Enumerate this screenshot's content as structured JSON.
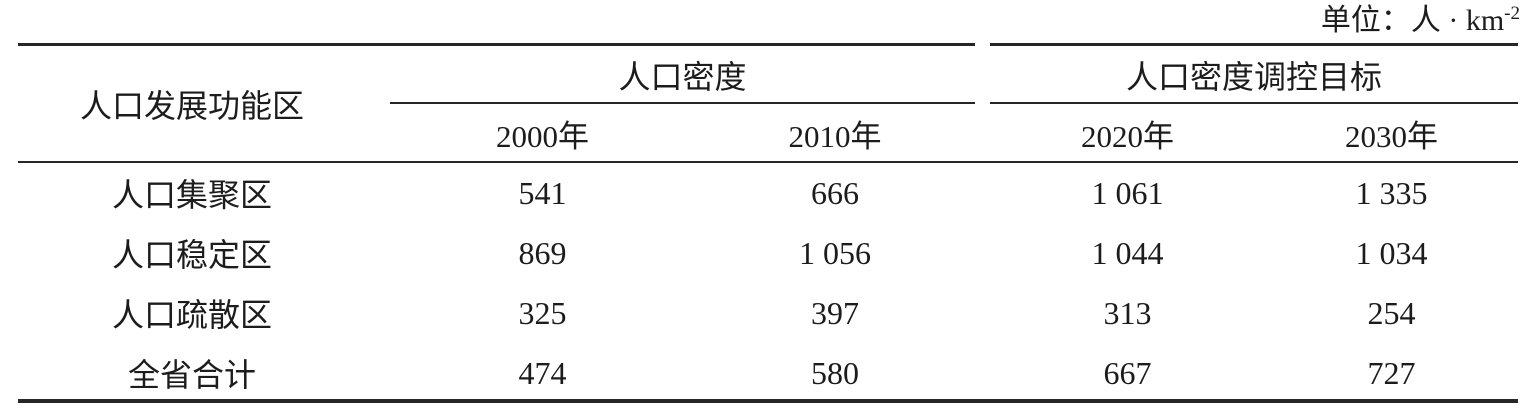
{
  "unit": {
    "prefix": "单位：人 · km",
    "exponent": "-2"
  },
  "table": {
    "corner_header": "人口发展功能区",
    "groups": [
      {
        "label": "人口密度",
        "years": [
          "2000年",
          "2010年"
        ]
      },
      {
        "label": "人口密度调控目标",
        "years": [
          "2020年",
          "2030年"
        ]
      }
    ],
    "rows": [
      {
        "label": "人口集聚区",
        "values": [
          "541",
          "666",
          "1 061",
          "1 335"
        ]
      },
      {
        "label": "人口稳定区",
        "values": [
          "869",
          "1 056",
          "1 044",
          "1 034"
        ]
      },
      {
        "label": "人口疏散区",
        "values": [
          "325",
          "397",
          "313",
          "254"
        ]
      },
      {
        "label": "全省合计",
        "values": [
          "474",
          "580",
          "667",
          "727"
        ]
      }
    ]
  },
  "colors": {
    "text": "#1c1c1c",
    "rule": "#262626",
    "background": "#ffffff"
  },
  "chart_data": {
    "type": "table",
    "title": "",
    "unit": "单位：人·km⁻²",
    "column_groups": [
      "人口密度",
      "人口密度调控目标"
    ],
    "columns": [
      "人口发展功能区",
      "2000年",
      "2010年",
      "2020年",
      "2030年"
    ],
    "rows": [
      [
        "人口集聚区",
        541,
        666,
        1061,
        1335
      ],
      [
        "人口稳定区",
        869,
        1056,
        1044,
        1034
      ],
      [
        "人口疏散区",
        325,
        397,
        313,
        254
      ],
      [
        "全省合计",
        474,
        580,
        667,
        727
      ]
    ]
  }
}
